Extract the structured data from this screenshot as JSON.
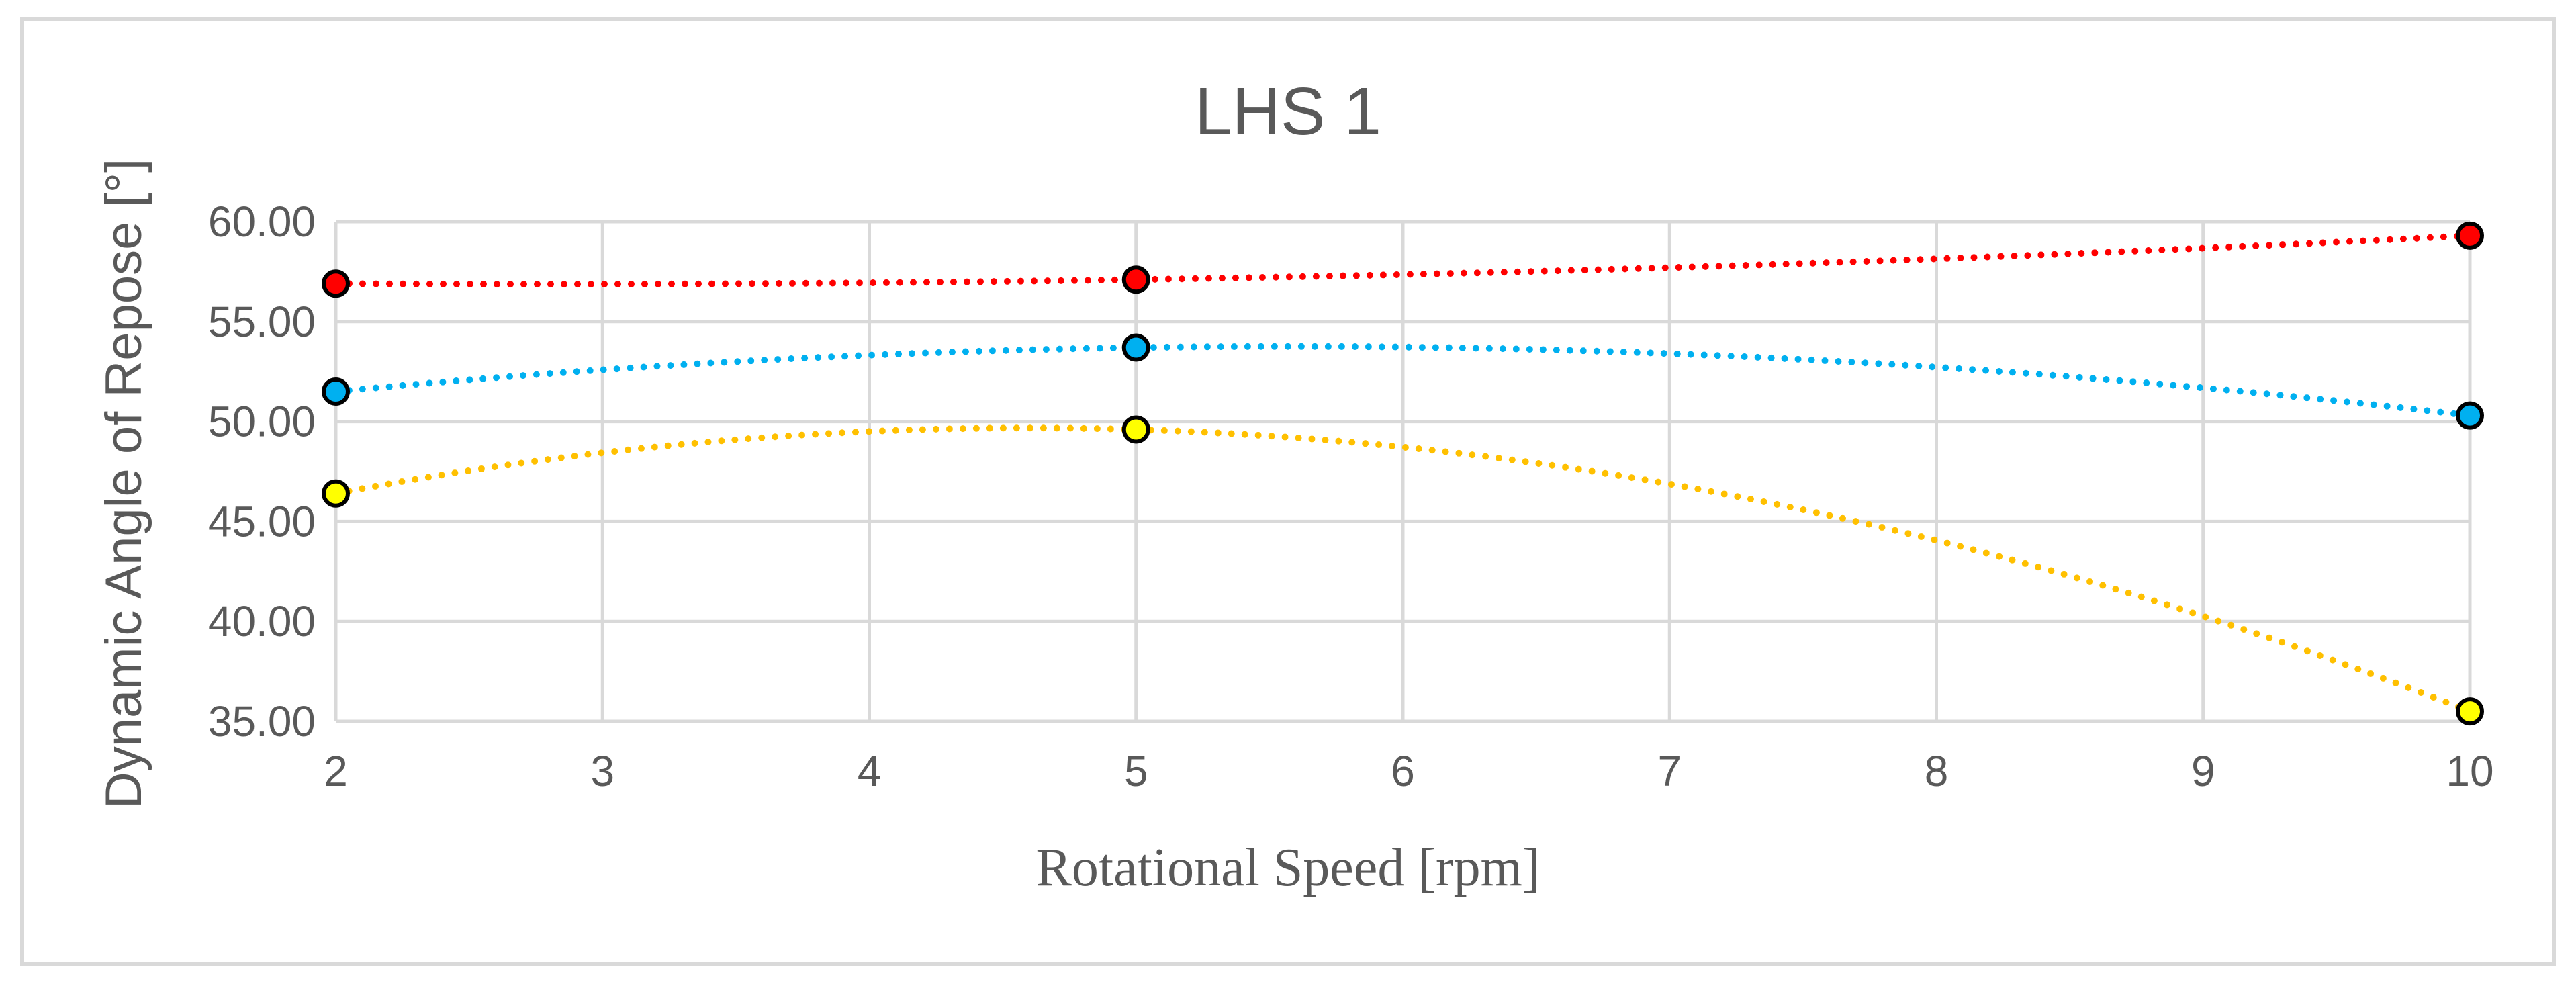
{
  "chart_data": {
    "type": "scatter",
    "title": "LHS 1",
    "xlabel": "Rotational Speed [rpm]",
    "ylabel": "Dynamic Angle of Repose [°]",
    "xlim": [
      2,
      10
    ],
    "ylim": [
      35,
      60
    ],
    "x_ticks": [
      2,
      3,
      4,
      5,
      6,
      7,
      8,
      9,
      10
    ],
    "y_ticks": [
      35,
      40,
      45,
      50,
      55,
      60
    ],
    "y_tick_labels": [
      "35.00",
      "40.00",
      "45.00",
      "50.00",
      "55.00",
      "60.00"
    ],
    "grid": true,
    "legend": "none",
    "trendline": "polynomial order 2 (dotted)",
    "series": [
      {
        "x": [
          2,
          5,
          10
        ],
        "values": [
          56.9,
          57.1,
          59.3
        ],
        "marker_color": "#ff0000",
        "line_color": "#ff0000"
      },
      {
        "x": [
          2,
          5,
          10
        ],
        "values": [
          51.5,
          53.7,
          50.3
        ],
        "marker_color": "#00b0f0",
        "line_color": "#00b0f0"
      },
      {
        "x": [
          2,
          5,
          10
        ],
        "values": [
          46.4,
          49.6,
          35.5
        ],
        "marker_color": "#ffff00",
        "line_color": "#ffc000"
      }
    ]
  }
}
